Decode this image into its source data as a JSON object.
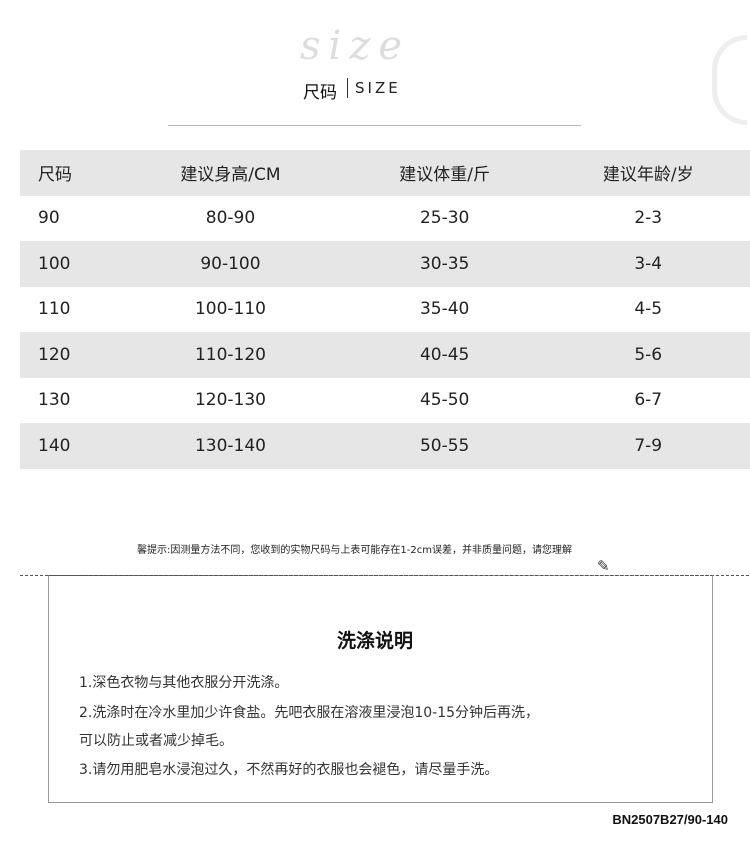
{
  "header": {
    "script_word": "size",
    "title_cn": "尺码",
    "title_en": "SIZE"
  },
  "table": {
    "columns": [
      "尺码",
      "建议身高/CM",
      "建议体重/斤",
      "建议年龄/岁"
    ],
    "rows": [
      [
        "90",
        "80-90",
        "25-30",
        "2-3"
      ],
      [
        "100",
        "90-100",
        "30-35",
        "3-4"
      ],
      [
        "110",
        "100-110",
        "35-40",
        "4-5"
      ],
      [
        "120",
        "110-120",
        "40-45",
        "5-6"
      ],
      [
        "130",
        "120-130",
        "45-50",
        "6-7"
      ],
      [
        "140",
        "130-140",
        "50-55",
        "7-9"
      ]
    ]
  },
  "note": "馨提示:因测量方法不同，您收到的实物尺码与上表可能存在1-2cm误差，并非质量问题，请您理解",
  "pencil_icon": "✎",
  "washing": {
    "title": "洗涤说明",
    "lines": [
      "1.深色衣物与其他衣服分开洗涤。",
      "2.洗涤时在冷水里加少许食盐。先吧衣服在溶液里浸泡10-15分钟后再洗，",
      "可以防止或者减少掉毛。",
      "3.请勿用肥皂水浸泡过久，不然再好的衣服也会褪色，请尽量手洗。"
    ]
  },
  "product_code": "BN2507B27/90-140"
}
